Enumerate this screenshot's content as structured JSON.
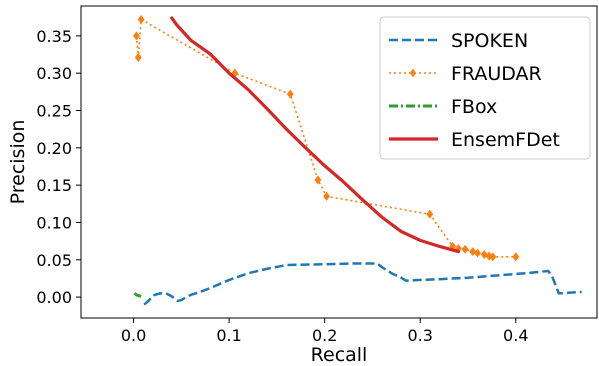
{
  "chart_data": {
    "type": "line",
    "title": "",
    "xlabel": "Recall",
    "ylabel": "Precision",
    "xlim": [
      -0.055,
      0.485
    ],
    "ylim": [
      -0.028,
      0.39
    ],
    "xticks": [
      0.0,
      0.1,
      0.2,
      0.3,
      0.4
    ],
    "yticks": [
      0.0,
      0.05,
      0.1,
      0.15,
      0.2,
      0.25,
      0.3,
      0.35
    ],
    "xtick_labels": [
      "0.0",
      "0.1",
      "0.2",
      "0.3",
      "0.4"
    ],
    "ytick_labels": [
      "0.00",
      "0.05",
      "0.10",
      "0.15",
      "0.20",
      "0.25",
      "0.30",
      "0.35"
    ],
    "grid": false,
    "legend_position": "top-right",
    "series": [
      {
        "name": "SPOKEN",
        "color": "#1f77b4",
        "style": "dashed",
        "marker": "none",
        "x": [
          0.011,
          0.013,
          0.017,
          0.022,
          0.028,
          0.034,
          0.04,
          0.046,
          0.05,
          0.055,
          0.06,
          0.07,
          0.08,
          0.1,
          0.12,
          0.14,
          0.16,
          0.2,
          0.23,
          0.255,
          0.26,
          0.27,
          0.28,
          0.285,
          0.3,
          0.32,
          0.35,
          0.38,
          0.41,
          0.434,
          0.438,
          0.441,
          0.445,
          0.469
        ],
        "y": [
          -0.01,
          -0.008,
          -0.003,
          0.003,
          0.005,
          0.005,
          0.001,
          -0.005,
          -0.004,
          0.0,
          0.003,
          0.007,
          0.012,
          0.023,
          0.032,
          0.038,
          0.043,
          0.044,
          0.045,
          0.045,
          0.04,
          0.032,
          0.026,
          0.022,
          0.023,
          0.024,
          0.026,
          0.029,
          0.032,
          0.035,
          0.028,
          0.018,
          0.005,
          0.007
        ]
      },
      {
        "name": "FRAUDAR",
        "color": "#ff7f0e",
        "style": "dotted",
        "marker": "diamond",
        "x": [
          0.003,
          0.005,
          0.008,
          0.106,
          0.164,
          0.193,
          0.202,
          0.31,
          0.334,
          0.34,
          0.347,
          0.355,
          0.36,
          0.367,
          0.372,
          0.376,
          0.4
        ],
        "y": [
          0.35,
          0.321,
          0.372,
          0.3,
          0.272,
          0.157,
          0.135,
          0.111,
          0.068,
          0.065,
          0.064,
          0.061,
          0.059,
          0.057,
          0.055,
          0.054,
          0.054
        ]
      },
      {
        "name": "FBox",
        "color": "#2ca02c",
        "style": "dashdot",
        "marker": "none",
        "x": [
          0.001,
          0.003,
          0.005,
          0.008
        ],
        "y": [
          0.005,
          0.003,
          0.002,
          0.001
        ]
      },
      {
        "name": "EnsemFDet",
        "color": "#d62728",
        "style": "solid",
        "marker": "none",
        "x": [
          0.04,
          0.045,
          0.05,
          0.06,
          0.08,
          0.1,
          0.12,
          0.14,
          0.16,
          0.18,
          0.2,
          0.22,
          0.24,
          0.26,
          0.28,
          0.3,
          0.32,
          0.34
        ],
        "y": [
          0.374,
          0.365,
          0.358,
          0.344,
          0.326,
          0.3,
          0.278,
          0.252,
          0.225,
          0.2,
          0.176,
          0.154,
          0.13,
          0.107,
          0.088,
          0.076,
          0.068,
          0.061
        ]
      }
    ]
  }
}
